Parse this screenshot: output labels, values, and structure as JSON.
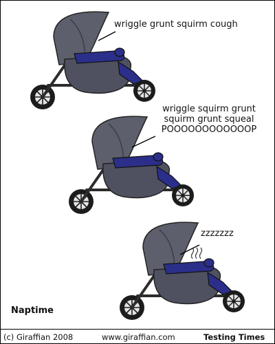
{
  "panels": [
    {
      "speech": [
        "wriggle grunt squirm cough"
      ]
    },
    {
      "speech": [
        "wriggle squirm grunt",
        "squirm grunt squeal",
        "POOOOOOOOOOOOP"
      ]
    },
    {
      "speech": [
        "zzzzzzz"
      ]
    }
  ],
  "caption": "Naptime",
  "footer": {
    "copyright": "(c) Giraffian 2008",
    "url": "www.giraffian.com",
    "series": "Testing Times"
  },
  "colors": {
    "hood": "#5d5f6c",
    "body": "#4f5160",
    "blanket": "#2b2f8a",
    "frame": "#2c2c2c",
    "tyre": "#1c1c1c",
    "wheel_hub": "#e3e3e6"
  },
  "icons": [
    "stroller-icon",
    "steam-icon"
  ]
}
